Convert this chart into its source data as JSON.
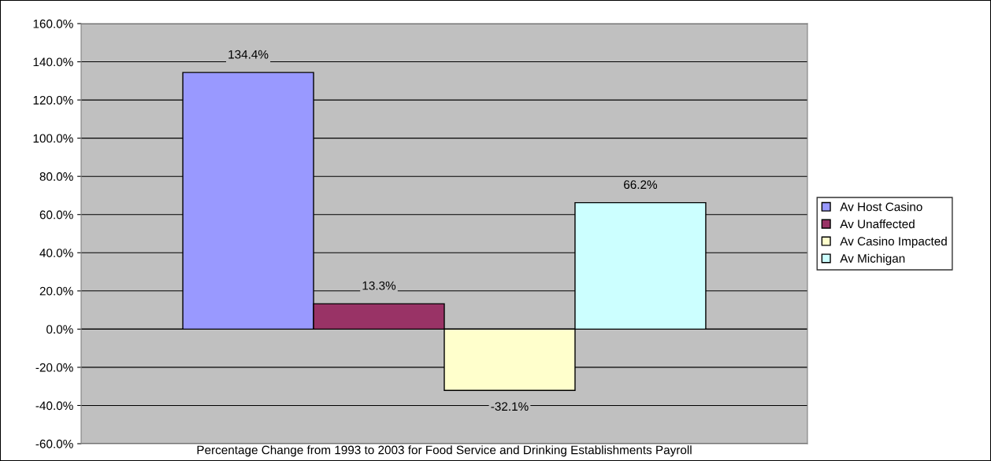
{
  "chart_data": {
    "type": "bar",
    "xlabel": "Percentage Change from 1993 to 2003 for Food Service and Drinking Establishments Payroll",
    "categories": [
      null
    ],
    "series": [
      {
        "name": "Av Host Casino",
        "color": "#9999ff",
        "values": [
          134.4
        ],
        "value_labels": [
          "134.4%"
        ]
      },
      {
        "name": "Av Unaffected",
        "color": "#993366",
        "values": [
          13.3
        ],
        "value_labels": [
          "13.3%"
        ]
      },
      {
        "name": "Av Casino Impacted",
        "color": "#ffffcc",
        "values": [
          -32.1
        ],
        "value_labels": [
          "-32.1%"
        ]
      },
      {
        "name": "Av Michigan",
        "color": "#ccffff",
        "values": [
          66.2
        ],
        "value_labels": [
          "66.2%"
        ]
      }
    ],
    "ylim": [
      -60,
      160
    ],
    "yticks": [
      {
        "value": -60,
        "label": "-60.0%"
      },
      {
        "value": -40,
        "label": "-40.0%"
      },
      {
        "value": -20,
        "label": "-20.0%"
      },
      {
        "value": 0,
        "label": "0.0%"
      },
      {
        "value": 20,
        "label": "20.0%"
      },
      {
        "value": 40,
        "label": "40.0%"
      },
      {
        "value": 60,
        "label": "60.0%"
      },
      {
        "value": 80,
        "label": "80.0%"
      },
      {
        "value": 100,
        "label": "100.0%"
      },
      {
        "value": 120,
        "label": "120.0%"
      },
      {
        "value": 140,
        "label": "140.0%"
      },
      {
        "value": 160,
        "label": "160.0%"
      }
    ],
    "grid": "y",
    "legend": "right"
  }
}
